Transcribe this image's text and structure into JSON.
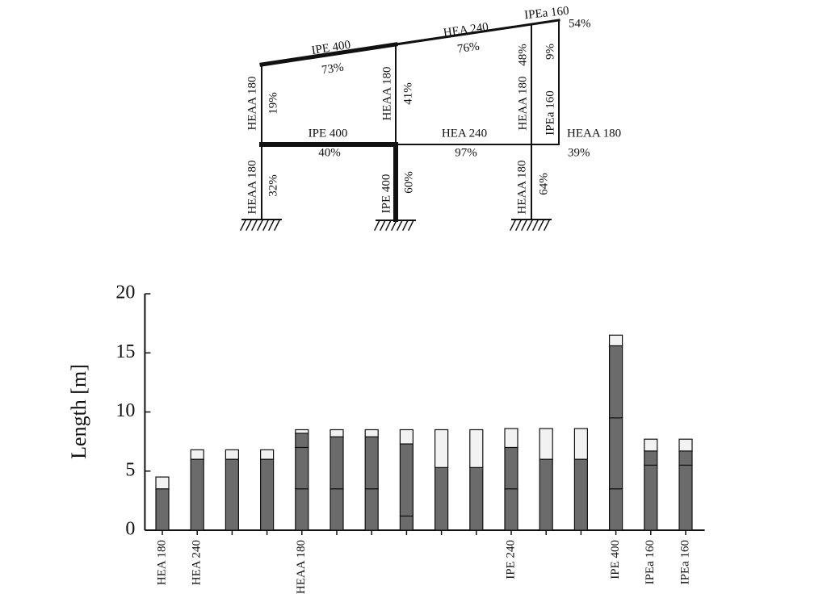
{
  "diagram": {
    "members": [
      {
        "section": "IPE 400",
        "utilization": "73%"
      },
      {
        "section": "HEA 240",
        "utilization": "76%"
      },
      {
        "section": "IPEa 160",
        "utilization": "54%"
      },
      {
        "section": "HEAA 180",
        "utilization": "19%"
      },
      {
        "section": "HEAA 180",
        "utilization": "41%"
      },
      {
        "section": "HEAA 180",
        "utilization": "48%"
      },
      {
        "section": "IPEa 160",
        "utilization": "9%"
      },
      {
        "section": "IPE 400",
        "utilization": "40%"
      },
      {
        "section": "HEA 240",
        "utilization": "97%"
      },
      {
        "section": "HEAA 180",
        "utilization": "39%"
      },
      {
        "section": "HEAA 180",
        "utilization": "32%"
      },
      {
        "section": "IPE 400",
        "utilization": "60%"
      },
      {
        "section": "HEAA 180",
        "utilization": "64%"
      }
    ]
  },
  "chart_data": {
    "type": "stacked-bar",
    "ylabel": "Length [m]",
    "categories": [
      "HEA 180",
      "HEA 240",
      null,
      null,
      "HEAA 180",
      null,
      null,
      null,
      null,
      null,
      "IPE 240",
      null,
      null,
      "IPE 400",
      "IPEa 160",
      "IPEa 160"
    ],
    "series": [
      {
        "color": "#6b6b6b",
        "values": [
          3.5,
          6.0,
          6.0,
          6.0,
          3.5,
          3.5,
          3.5,
          1.2,
          5.3,
          5.3,
          3.5,
          6.0,
          6.0,
          3.5,
          5.5,
          5.5
        ]
      },
      {
        "color": "#6b6b6b",
        "values": [
          0,
          0,
          0,
          0,
          3.5,
          4.4,
          4.4,
          6.1,
          0,
          0,
          3.5,
          0,
          0,
          6.0,
          1.2,
          1.2
        ]
      },
      {
        "color": "#6b6b6b",
        "values": [
          0,
          0,
          0,
          0,
          1.2,
          0,
          0,
          0,
          0,
          0,
          0,
          0,
          0,
          6.1,
          0,
          0
        ]
      },
      {
        "color": "#f2f2f2",
        "values": [
          1.0,
          0.8,
          0.8,
          0.8,
          0.3,
          0.6,
          0.6,
          1.2,
          3.2,
          3.2,
          1.6,
          2.6,
          2.6,
          0.9,
          1.0,
          1.0
        ]
      }
    ],
    "ylim": [
      0,
      20
    ],
    "yticks": [
      0,
      5,
      10,
      15,
      20
    ],
    "grid": false
  }
}
